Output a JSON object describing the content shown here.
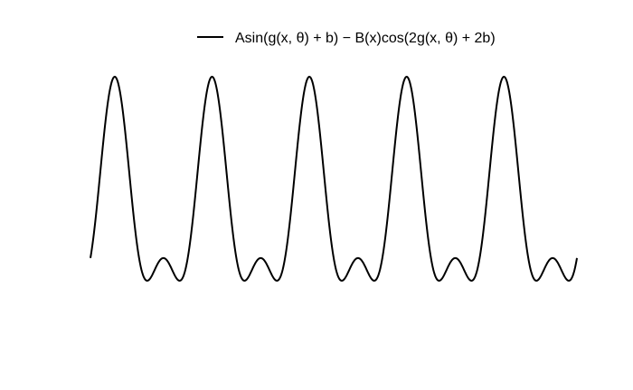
{
  "chart_data": {
    "type": "line",
    "title": "",
    "xlabel": "",
    "ylabel": "",
    "grid": false,
    "axes_visible": false,
    "legend": {
      "placement": "top-center"
    },
    "x_range": [
      0,
      5
    ],
    "y_range": [
      -0.88,
      1.48
    ],
    "series": [
      {
        "name": "Asin(g(x, θ) + b) − B(x)cos(2g(x, θ) + 2b)",
        "color": "#000000",
        "formula_shape": "y = sin(2πx) − 0.5·cos(4πx)",
        "x": [
          0,
          0.05,
          0.1,
          0.15,
          0.2,
          0.25,
          0.3,
          0.35,
          0.4,
          0.45,
          0.5,
          0.55,
          0.6,
          0.65,
          0.7,
          0.75,
          0.8,
          0.85,
          0.9,
          0.95,
          1.0
        ],
        "y": [
          -0.5,
          -0.096,
          0.438,
          0.963,
          1.356,
          1.5,
          1.356,
          0.963,
          0.438,
          -0.096,
          -0.5,
          -0.713,
          -0.742,
          -0.654,
          -0.546,
          -0.5,
          -0.546,
          -0.654,
          -0.742,
          -0.713,
          -0.5
        ],
        "periods": 5
      }
    ]
  }
}
